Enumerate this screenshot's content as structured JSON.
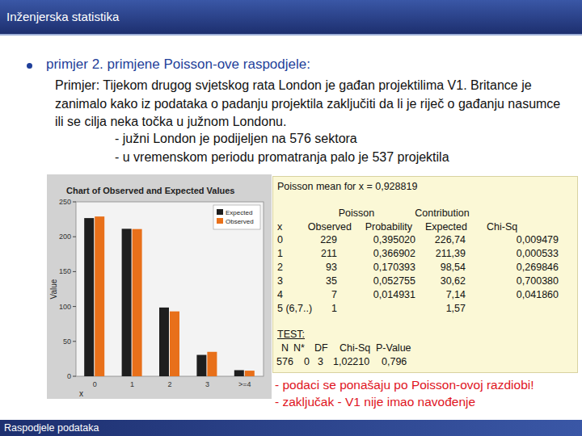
{
  "header": {
    "title": "Inženjerska statistika"
  },
  "bullet": "primjer 2. primjene Poisson-ove raspodjele:",
  "paragraph": "Primjer: Tijekom drugog svjetskog rata London je gađan projektilima V1. Britance je zanimalo kako iz podataka o padanju projektila zaključiti da li je riječ o gađanju nasumce ili se cilja neka točka u južnom Londonu.",
  "points": [
    "- južni London je podijeljen na 576 sektora",
    "- u vremenskom periodu promatranja palo je 537 projektila"
  ],
  "chart_data": {
    "type": "bar",
    "title": "Chart of Observed and Expected Values",
    "x_label": "x",
    "y_label": "Value",
    "categories": [
      "0",
      "1",
      "2",
      "3",
      ">=4"
    ],
    "series": [
      {
        "name": "Expected",
        "color": "#1e1e1e",
        "values": [
          226.74,
          211.39,
          98.54,
          30.62,
          8.71
        ]
      },
      {
        "name": "Observed",
        "color": "#e8701a",
        "values": [
          229,
          211,
          93,
          35,
          8
        ]
      }
    ],
    "ylim": [
      0,
      250
    ],
    "yticks": [
      0,
      50,
      100,
      150,
      200,
      250
    ],
    "grid": false,
    "legend": "top-right"
  },
  "stats": {
    "mean_line": "Poisson mean for x = 0,928819",
    "header_top": [
      "Poisson",
      "Contribution"
    ],
    "header": [
      "x",
      "Observed",
      "Probability",
      "Expected",
      "Chi-Sq"
    ],
    "rows": [
      {
        "x": "0",
        "observed": "229",
        "probability": "0,395020",
        "expected": "226,74",
        "chi_sq": "0,009479"
      },
      {
        "x": "1",
        "observed": "211",
        "probability": "0,366902",
        "expected": "211,39",
        "chi_sq": "0,000533"
      },
      {
        "x": "2",
        "observed": "93",
        "probability": "0,170393",
        "expected": "98,54",
        "chi_sq": "0,269846"
      },
      {
        "x": "3",
        "observed": "35",
        "probability": "0,052755",
        "expected": "30,62",
        "chi_sq": "0,700380"
      },
      {
        "x": "4",
        "observed": "7",
        "probability": "0,014931",
        "expected": "7,14",
        "chi_sq": "0,041860"
      },
      {
        "x": "5 (6,7..)",
        "observed": "1",
        "expected": "1,57"
      }
    ],
    "test_title": "TEST:",
    "test_header": [
      "N",
      "N*",
      "DF",
      "Chi-Sq",
      "P-Value"
    ],
    "test_values": [
      "576",
      "0",
      "3",
      "1,02210",
      "0,796"
    ]
  },
  "conclusions": [
    "- podaci se ponašaju po Poisson-ovoj razdiobi!",
    "- zaključak -  V1 nije imao navođenje"
  ],
  "footer": "Raspodjele podataka"
}
